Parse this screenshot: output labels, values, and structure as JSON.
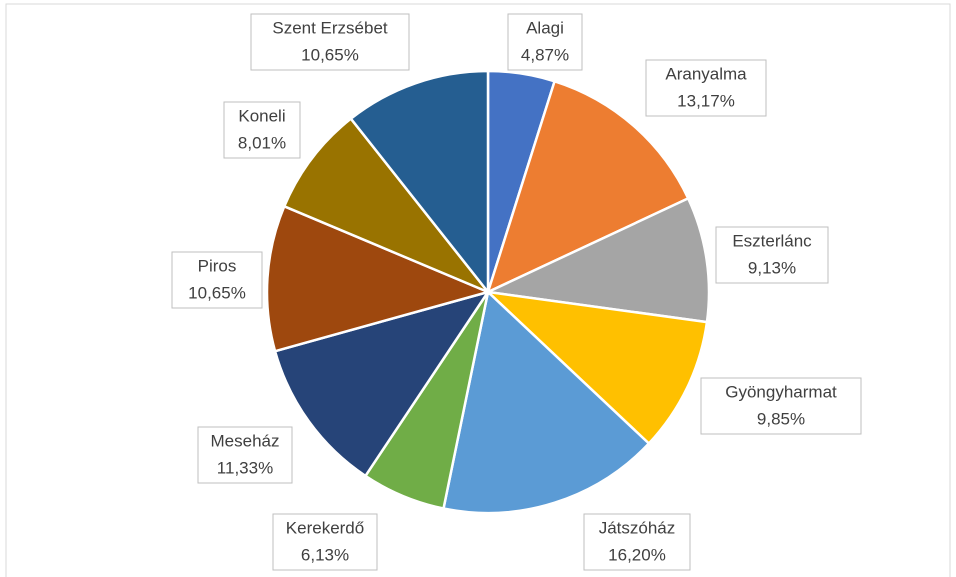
{
  "chart_data": {
    "type": "pie",
    "categories": [
      "Alagi",
      "Aranyalma",
      "Eszterlánc",
      "Gyöngyharmat",
      "Játszóház",
      "Kerekerdő",
      "Meseház",
      "Piros",
      "Koneli",
      "Szent Erzsébet"
    ],
    "values": [
      4.87,
      13.17,
      9.13,
      9.85,
      16.2,
      6.13,
      11.33,
      10.65,
      8.01,
      10.65
    ],
    "value_labels": [
      "4,87%",
      "13,17%",
      "9,13%",
      "9,85%",
      "16,20%",
      "6,13%",
      "11,33%",
      "10,65%",
      "8,01%",
      "10,65%"
    ],
    "colors": [
      "#4472c4",
      "#ed7d31",
      "#a5a5a5",
      "#ffc000",
      "#5b9bd5",
      "#70ad47",
      "#264478",
      "#9e480e",
      "#997300",
      "#255e91"
    ]
  }
}
